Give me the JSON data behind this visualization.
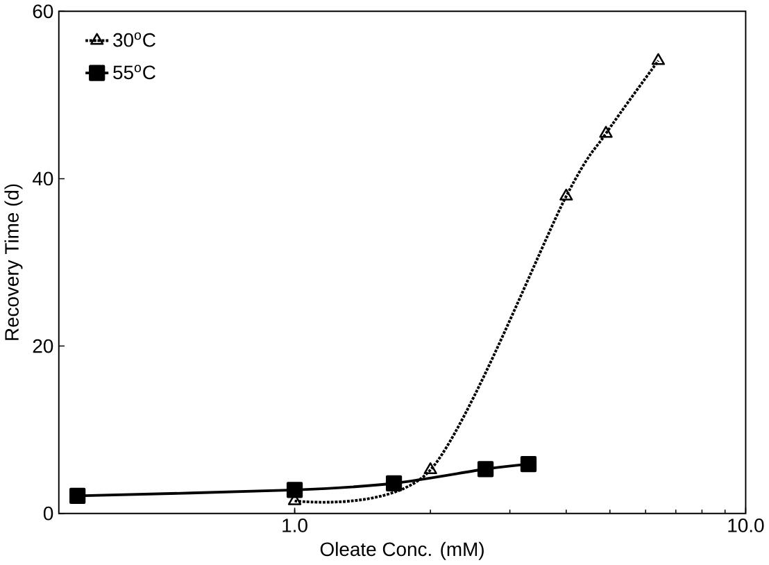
{
  "chart_data": {
    "type": "line",
    "xlabel": "Oleate Conc. (mM)",
    "ylabel": "Recovery Time (d)",
    "log": "x",
    "xlim": [
      0.3,
      10
    ],
    "ylim": [
      0,
      60
    ],
    "xticks": [
      {
        "value": 1,
        "label": "1.0"
      },
      {
        "value": 10,
        "label": "10.0"
      }
    ],
    "yticks": [
      0,
      20,
      40,
      60
    ],
    "legend": "top left",
    "grid": false,
    "series": [
      {
        "name": "30$^{o}$C",
        "color": "#000000",
        "marker": "triangle",
        "line_style": "dotted",
        "x": [
          1.0,
          2.0,
          4.0,
          4.9,
          6.4
        ],
        "values": [
          1.5,
          5.2,
          37.9,
          45.4,
          54.1
        ]
      },
      {
        "name": "55$^{o}$C",
        "color": "#000000",
        "marker": "square",
        "line_style": "solid",
        "x": [
          0.33,
          1.0,
          1.66,
          2.65,
          3.3
        ],
        "values": [
          2.1,
          2.8,
          3.6,
          5.3,
          5.9
        ]
      }
    ]
  }
}
